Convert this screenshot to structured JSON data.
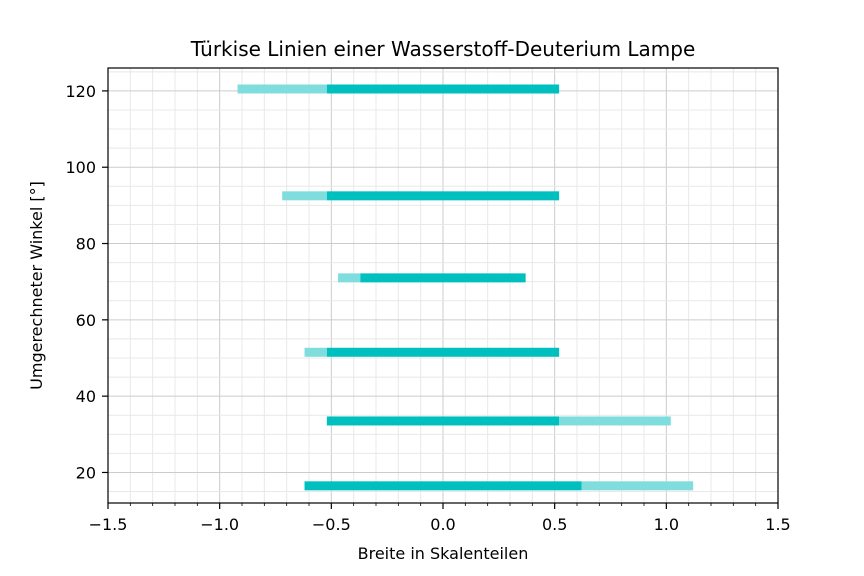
{
  "chart_data": {
    "type": "bar",
    "orientation": "horizontal",
    "title": "Türkise Linien einer Wasserstoff-Deuterium Lampe",
    "xlabel": "Breite in Skalenteilen",
    "ylabel": "Umgerechneter Winkel [°]",
    "xlim": [
      -1.5,
      1.5
    ],
    "ylim": [
      12,
      126
    ],
    "xticks": [
      "−1.5",
      "−1.0",
      "−0.5",
      "0.0",
      "0.5",
      "1.0",
      "1.5"
    ],
    "xtick_values": [
      -1.5,
      -1.0,
      -0.5,
      0.0,
      0.5,
      1.0,
      1.5
    ],
    "yticks": [
      "20",
      "40",
      "60",
      "80",
      "100",
      "120"
    ],
    "ytick_values": [
      20,
      40,
      60,
      80,
      100,
      120
    ],
    "grid": true,
    "minor_grid_step_x": 0.1,
    "colors": {
      "main": "#00bfbf",
      "light": "#80dddd"
    },
    "series": [
      {
        "values": [
          {
            "y": 120.5,
            "x_start": -0.52,
            "x_end": 0.52
          },
          {
            "y": 92.5,
            "x_start": -0.52,
            "x_end": 0.52
          },
          {
            "y": 71.0,
            "x_start": -0.37,
            "x_end": 0.37
          },
          {
            "y": 51.5,
            "x_start": -0.52,
            "x_end": 0.52
          },
          {
            "y": 33.5,
            "x_start": -0.52,
            "x_end": 0.52
          },
          {
            "y": 16.5,
            "x_start": -0.62,
            "x_end": 0.62
          }
        ]
      },
      {
        "values": [
          {
            "y": 120.5,
            "x_start": -0.92,
            "x_end": -0.52
          },
          {
            "y": 92.5,
            "x_start": -0.72,
            "x_end": -0.52
          },
          {
            "y": 71.0,
            "x_start": -0.47,
            "x_end": -0.37
          },
          {
            "y": 51.5,
            "x_start": -0.62,
            "x_end": -0.52
          },
          {
            "y": 33.5,
            "x_start": 0.52,
            "x_end": 1.02
          },
          {
            "y": 16.5,
            "x_start": 0.62,
            "x_end": 1.12
          }
        ]
      }
    ]
  }
}
